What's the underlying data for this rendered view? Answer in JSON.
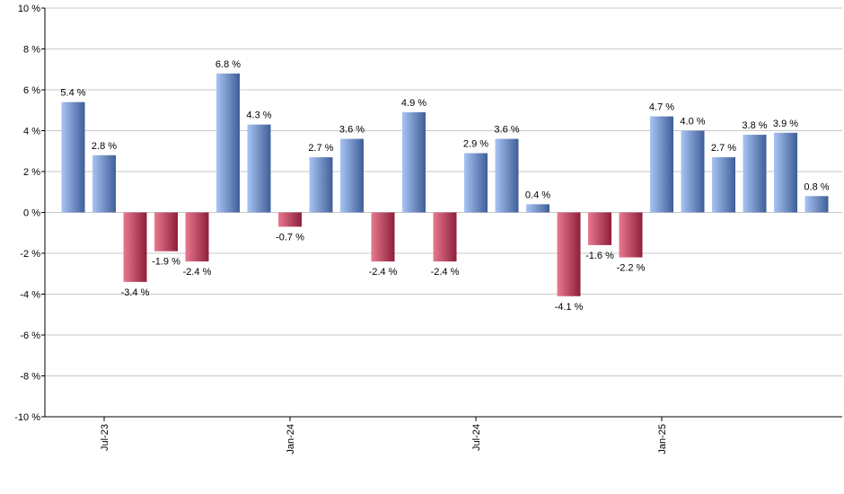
{
  "chart_data": {
    "type": "bar",
    "title": "",
    "xlabel": "",
    "ylabel": "",
    "ylim": [
      -10,
      10
    ],
    "yticks": [
      {
        "value": 10,
        "label": "10 %"
      },
      {
        "value": 8,
        "label": "8 %"
      },
      {
        "value": 6,
        "label": "6 %"
      },
      {
        "value": 4,
        "label": "4 %"
      },
      {
        "value": 2,
        "label": "2 %"
      },
      {
        "value": 0,
        "label": "0 %"
      },
      {
        "value": -2,
        "label": "-2 %"
      },
      {
        "value": -4,
        "label": "-4 %"
      },
      {
        "value": -6,
        "label": "-6 %"
      },
      {
        "value": -8,
        "label": "-8 %"
      },
      {
        "value": -10,
        "label": "-10 %"
      }
    ],
    "xticks": [
      {
        "index": 1,
        "label": "Jul-23"
      },
      {
        "index": 7,
        "label": "Jan-24"
      },
      {
        "index": 13,
        "label": "Jul-24"
      },
      {
        "index": 19,
        "label": "Jan-25"
      }
    ],
    "values": [
      5.4,
      2.8,
      -3.4,
      -1.9,
      -2.4,
      6.8,
      4.3,
      -0.7,
      2.7,
      3.6,
      -2.4,
      4.9,
      -2.4,
      2.9,
      3.6,
      0.4,
      -4.1,
      -1.6,
      -2.2,
      4.7,
      4.0,
      2.7,
      3.8,
      3.9,
      0.8
    ],
    "labels": [
      "5.4 %",
      "2.8 %",
      "-3.4 %",
      "-1.9 %",
      "-2.4 %",
      "6.8 %",
      "4.3 %",
      "-0.7 %",
      "2.7 %",
      "3.6 %",
      "-2.4 %",
      "4.9 %",
      "-2.4 %",
      "2.9 %",
      "3.6 %",
      "0.4 %",
      "-4.1 %",
      "-1.6 %",
      "-2.2 %",
      "4.7 %",
      "4.0 %",
      "2.7 %",
      "3.8 %",
      "3.9 %",
      "0.8 %"
    ],
    "colors": {
      "positive_light": "#a8c4f4",
      "positive_dark": "#3f5e98",
      "negative_light": "#e8798f",
      "negative_dark": "#8e1f3b",
      "grid": "#c8c8c8",
      "axis": "#000000"
    }
  }
}
